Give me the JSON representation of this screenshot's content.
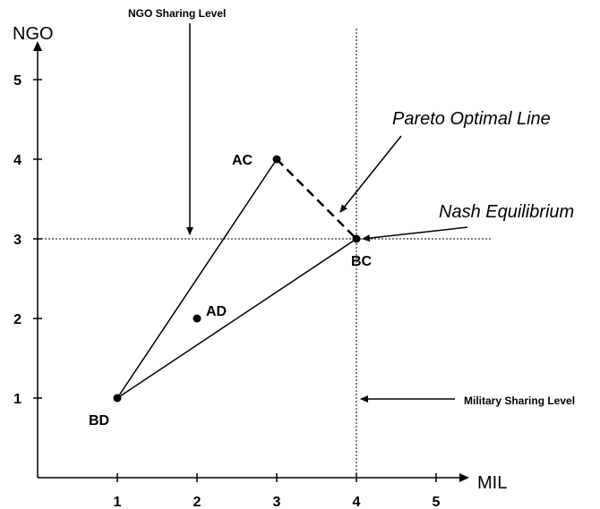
{
  "chart_data": {
    "type": "scatter",
    "xlabel": "MIL",
    "ylabel": "NGO",
    "xlim": [
      0,
      5.5
    ],
    "ylim": [
      0,
      5.5
    ],
    "x_ticks": [
      "1",
      "2",
      "3",
      "4",
      "5"
    ],
    "y_ticks": [
      "1",
      "2",
      "3",
      "4",
      "5"
    ],
    "points": [
      {
        "label": "BD",
        "x": 1,
        "y": 1
      },
      {
        "label": "AD",
        "x": 2,
        "y": 2
      },
      {
        "label": "AC",
        "x": 3,
        "y": 4
      },
      {
        "label": "BC",
        "x": 4,
        "y": 3
      }
    ],
    "segments": [
      {
        "from": "BD",
        "to": "AC",
        "style": "solid"
      },
      {
        "from": "BD",
        "to": "BC",
        "style": "solid"
      },
      {
        "from": "AC",
        "to": "BC",
        "style": "dashed"
      }
    ],
    "reference_lines": [
      {
        "orientation": "horizontal",
        "value": 3,
        "style": "dotted"
      },
      {
        "orientation": "vertical",
        "value": 4,
        "style": "dotted"
      }
    ],
    "annotations": {
      "ngo_sharing_level": "NGO Sharing Level",
      "military_sharing_level": "Military Sharing Level",
      "pareto_optimal_line": "Pareto Optimal Line",
      "nash_equilibrium": "Nash Equilibrium"
    }
  }
}
